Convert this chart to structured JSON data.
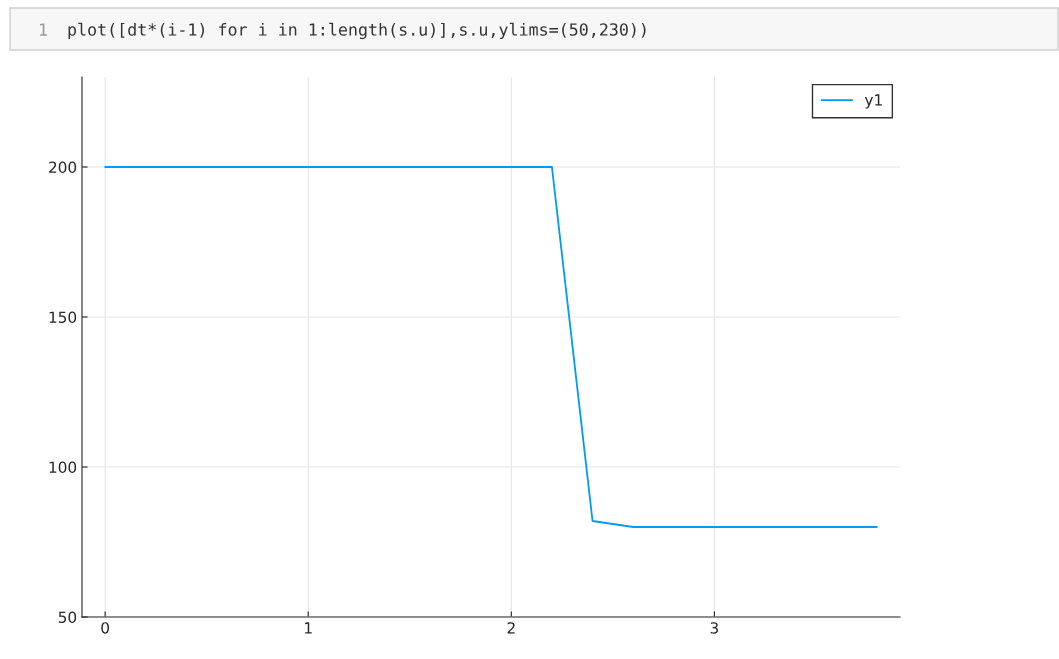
{
  "chart_data": {
    "type": "line",
    "annotations": [
      "1",
      "plot([dt*(i-1) for i in 1:length(s.u)],s.u,ylims=(50,230))"
    ],
    "series": [
      {
        "name": "y1",
        "color": "#009af9",
        "x": [
          0,
          0.2,
          0.4,
          0.6,
          0.8,
          1.0,
          1.2,
          1.4,
          1.6,
          1.8,
          2.0,
          2.2,
          2.4,
          2.6,
          2.8,
          3.0,
          3.2,
          3.4,
          3.6,
          3.8
        ],
        "values": [
          200,
          200,
          200,
          200,
          200,
          200,
          200,
          200,
          200,
          200,
          200,
          200,
          82,
          80,
          80,
          80,
          80,
          80,
          80,
          80
        ]
      }
    ],
    "xlim": [
      -0.114,
      3.914
    ],
    "xticks": [
      0,
      1,
      2,
      3
    ],
    "ylim": [
      50,
      230
    ],
    "yticks": [
      50,
      100,
      150,
      200
    ],
    "grid": true,
    "legend": "top right",
    "marker": "none",
    "line_style": "solid"
  }
}
